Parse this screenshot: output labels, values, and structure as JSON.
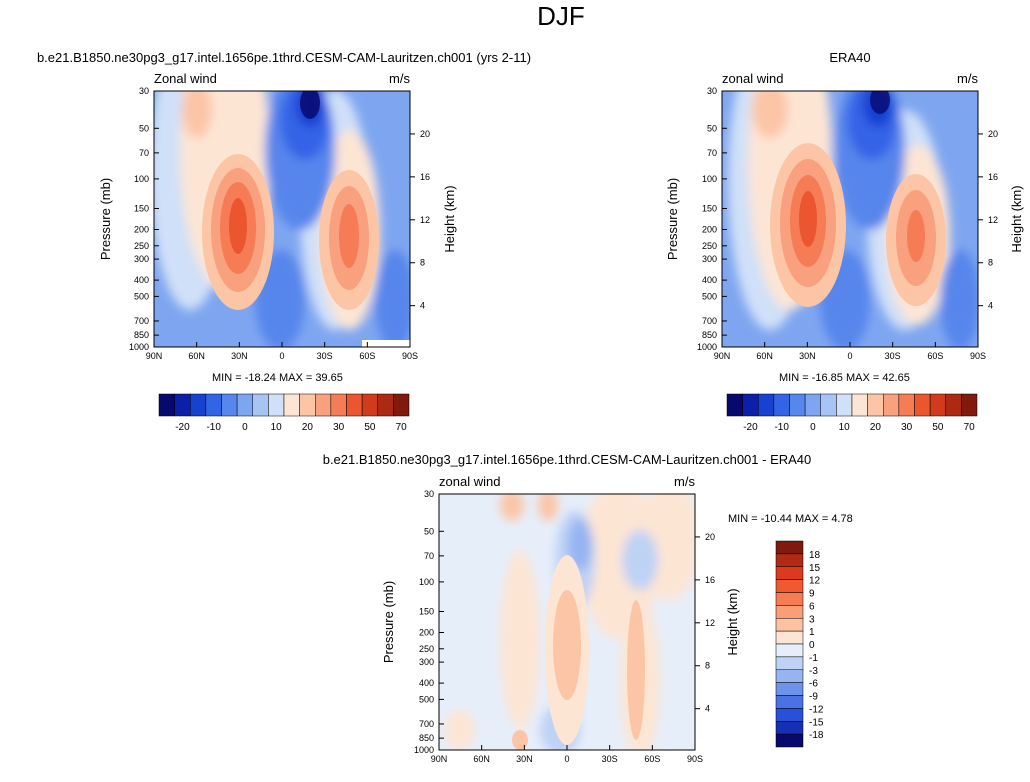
{
  "figure": {
    "title": "DJF"
  },
  "panels": {
    "model": {
      "title": "b.e21.B1850.ne30pg3_g17.intel.1656pe.1thrd.CESM-CAM-Lauritzen.ch001 (yrs 2-11)",
      "left_label": "Zonal wind",
      "right_label": "m/s",
      "stats": "MIN = -18.24  MAX =  39.65"
    },
    "obs": {
      "title": "ERA40",
      "left_label": "zonal wind",
      "right_label": "m/s",
      "stats": "MIN = -16.85  MAX =  42.65"
    },
    "diff": {
      "title": "b.e21.B1850.ne30pg3_g17.intel.1656pe.1thrd.CESM-CAM-Lauritzen.ch001 - ERA40",
      "left_label": "zonal wind",
      "right_label": "m/s",
      "stats": "MIN = -10.44  MAX =  4.78"
    }
  },
  "axes": {
    "ylabel": "Pressure (mb)",
    "y2label": "Height (km)",
    "pressure_ticks": [
      "30",
      "50",
      "70",
      "100",
      "150",
      "200",
      "250",
      "300",
      "400",
      "500",
      "700",
      "850",
      "1000"
    ],
    "height_ticks": [
      "20",
      "16",
      "12",
      "8",
      "4"
    ],
    "lat_ticks": [
      "90N",
      "60N",
      "30N",
      "0",
      "30S",
      "60S",
      "90S"
    ]
  },
  "colorbars": {
    "fields": {
      "tick_labels": [
        "-20",
        "-10",
        "0",
        "10",
        "20",
        "30",
        "50",
        "70"
      ],
      "colors": [
        "#08096e",
        "#0b1fa8",
        "#1741d1",
        "#3464e6",
        "#5786ec",
        "#7ea6f0",
        "#a8c4f4",
        "#d0e0f8",
        "#fde5d4",
        "#fcc5a6",
        "#f9a07e",
        "#f57c55",
        "#eb5530",
        "#cf3b1c",
        "#ac2a14",
        "#7f1a0c"
      ]
    },
    "difference": {
      "tick_labels": [
        "18",
        "15",
        "12",
        "9",
        "6",
        "3",
        "1",
        "0",
        "-1",
        "-3",
        "-6",
        "-9",
        "-12",
        "-15",
        "-18"
      ],
      "colors": [
        "#7f1a0c",
        "#b02a14",
        "#db3b1c",
        "#f05a30",
        "#f77c52",
        "#fa9e78",
        "#fcc2a2",
        "#fde5d4",
        "#e6eefa",
        "#bed2f5",
        "#95b4f0",
        "#6e93eb",
        "#4a72e4",
        "#2a50d8",
        "#1530b2",
        "#08096e"
      ]
    }
  },
  "chart_data": [
    {
      "type": "heatmap",
      "title": "b.e21.B1850.ne30pg3_g17.intel.1656pe.1thrd.CESM-CAM-Lauritzen.ch001 (yrs 2-11)",
      "variable": "Zonal wind",
      "units": "m/s",
      "xlabel": "",
      "ylabel": "Pressure (mb)",
      "y2label": "Height (km)",
      "min": -18.24,
      "max": 39.65,
      "y_scale": "log",
      "ylim": [
        1000,
        30
      ],
      "x_ticks": [
        "90N",
        "60N",
        "30N",
        "0",
        "30S",
        "60S",
        "90S"
      ],
      "levels": [
        -25,
        -20,
        -15,
        -10,
        -5,
        0,
        5,
        10,
        15,
        20,
        25,
        30,
        40,
        50,
        60,
        70
      ],
      "features": [
        {
          "label": "NH subtropical jet",
          "lat": 30,
          "pressure": 200,
          "value": 39.65
        },
        {
          "label": "SH jet",
          "lat": -45,
          "pressure": 250,
          "value": 32
        },
        {
          "label": "stratospheric easterlies",
          "lat": -15,
          "pressure": 30,
          "value": -18.24
        }
      ]
    },
    {
      "type": "heatmap",
      "title": "ERA40",
      "variable": "zonal wind",
      "units": "m/s",
      "ylabel": "Pressure (mb)",
      "y2label": "Height (km)",
      "min": -16.85,
      "max": 42.65,
      "y_scale": "log",
      "ylim": [
        1000,
        30
      ],
      "x_ticks": [
        "90N",
        "60N",
        "30N",
        "0",
        "30S",
        "60S",
        "90S"
      ],
      "levels": [
        -25,
        -20,
        -15,
        -10,
        -5,
        0,
        5,
        10,
        15,
        20,
        25,
        30,
        40,
        50,
        60,
        70
      ],
      "features": [
        {
          "label": "NH subtropical jet",
          "lat": 30,
          "pressure": 200,
          "value": 42.65
        },
        {
          "label": "SH jet",
          "lat": -45,
          "pressure": 250,
          "value": 30
        },
        {
          "label": "stratospheric easterlies",
          "lat": -15,
          "pressure": 30,
          "value": -16.85
        }
      ]
    },
    {
      "type": "heatmap",
      "title": "b.e21.B1850.ne30pg3_g17.intel.1656pe.1thrd.CESM-CAM-Lauritzen.ch001 - ERA40",
      "variable": "zonal wind",
      "units": "m/s",
      "ylabel": "Pressure (mb)",
      "y2label": "Height (km)",
      "min": -10.44,
      "max": 4.78,
      "y_scale": "log",
      "ylim": [
        1000,
        30
      ],
      "x_ticks": [
        "90N",
        "60N",
        "30N",
        "0",
        "30S",
        "60S",
        "90S"
      ],
      "levels": [
        -18,
        -15,
        -12,
        -9,
        -6,
        -3,
        -1,
        0,
        1,
        3,
        6,
        9,
        12,
        15,
        18
      ],
      "features": [
        {
          "label": "positive anomaly",
          "lat": 0,
          "pressure": 200,
          "value": 4.78
        },
        {
          "label": "negative anomaly",
          "lat": 10,
          "pressure": 70,
          "value": -5
        }
      ]
    }
  ]
}
